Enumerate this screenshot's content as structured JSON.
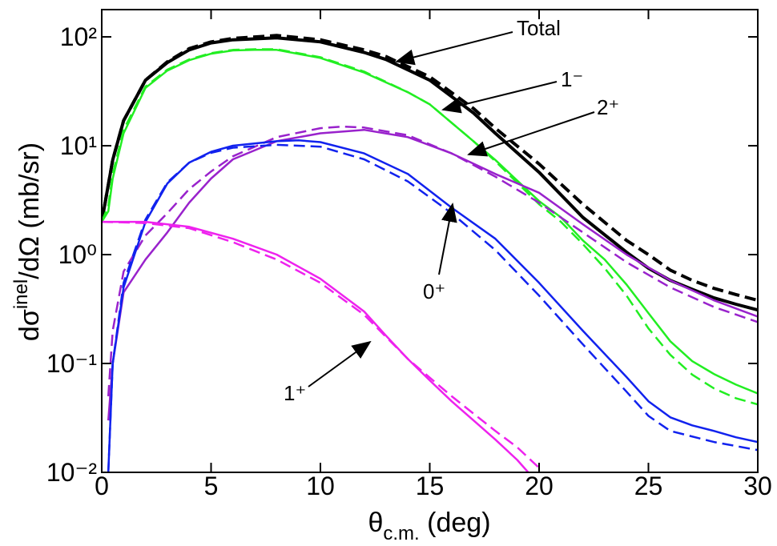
{
  "chart_data": {
    "type": "line",
    "xlabel": {
      "main": "θ",
      "sub": "c.m.",
      "rest": " (deg)"
    },
    "ylabel": {
      "pre": "dσ",
      "sup": "inel",
      "post": "/dΩ (mb/sr)"
    },
    "xlim": [
      0,
      30
    ],
    "xticks": [
      0,
      5,
      10,
      15,
      20,
      25,
      30
    ],
    "ylim": [
      0.01,
      178
    ],
    "log_y": true,
    "yticks": [
      {
        "value": 0.01,
        "label": "10⁻²"
      },
      {
        "value": 0.1,
        "label": "10⁻¹"
      },
      {
        "value": 1,
        "label": "10⁰"
      },
      {
        "value": 10,
        "label": "10¹"
      },
      {
        "value": 100,
        "label": "10²"
      }
    ],
    "series": [
      {
        "color": "#000000",
        "dashed": false,
        "width": 4,
        "x": [
          0,
          0.5,
          1,
          2,
          3,
          4,
          5,
          6,
          8,
          10,
          12,
          13,
          15,
          17,
          18,
          20,
          22,
          24,
          25,
          26,
          27,
          28,
          29,
          30
        ],
        "values": [
          2,
          7.4,
          17,
          40,
          58,
          76,
          88,
          94,
          98,
          90,
          72,
          62,
          40,
          20,
          13,
          5.7,
          2.2,
          1.05,
          0.75,
          0.58,
          0.48,
          0.4,
          0.35,
          0.31
        ]
      },
      {
        "color": "#000000",
        "dashed": true,
        "width": 4,
        "x": [
          0,
          0.5,
          1,
          2,
          3,
          4,
          5,
          6,
          8,
          10,
          12,
          13,
          15,
          17,
          18,
          20,
          22,
          24,
          25,
          26,
          27,
          28,
          29,
          30
        ],
        "values": [
          2,
          7.4,
          17,
          40,
          59,
          78,
          90,
          97,
          103,
          94,
          76,
          66,
          43,
          22,
          14.5,
          6.8,
          2.9,
          1.35,
          1.0,
          0.72,
          0.58,
          0.49,
          0.43,
          0.38
        ]
      },
      {
        "color": "#22ee22",
        "dashed": false,
        "width": 2.5,
        "x": [
          0,
          0.3,
          0.5,
          1,
          2,
          3,
          4,
          5,
          6,
          7,
          8,
          10,
          12,
          14,
          15,
          17,
          18,
          20,
          21,
          22,
          23,
          24,
          25,
          26,
          27,
          28,
          29,
          30
        ],
        "values": [
          2,
          2.5,
          5,
          13,
          34,
          49,
          61,
          70,
          75,
          76,
          76,
          64,
          47,
          31,
          24,
          11,
          7.4,
          3.1,
          2.2,
          1.35,
          0.9,
          0.53,
          0.29,
          0.16,
          0.105,
          0.08,
          0.064,
          0.053
        ]
      },
      {
        "color": "#22ee22",
        "dashed": true,
        "width": 2.5,
        "x": [
          0,
          0.3,
          0.5,
          1,
          2,
          3,
          4,
          5,
          6,
          7,
          8,
          10,
          12,
          14,
          15,
          17,
          18,
          20,
          21,
          22,
          23,
          24,
          25,
          26,
          27,
          28,
          29,
          30
        ],
        "values": [
          2,
          2.8,
          5.5,
          14,
          35,
          50,
          62,
          71,
          76,
          77,
          77,
          65,
          48,
          31,
          24,
          11,
          7.2,
          2.9,
          2.0,
          1.25,
          0.75,
          0.42,
          0.21,
          0.12,
          0.079,
          0.059,
          0.048,
          0.042
        ]
      },
      {
        "color": "#9922cc",
        "dashed": false,
        "width": 2.5,
        "x": [
          0.3,
          0.5,
          1,
          2,
          3,
          4,
          5,
          6,
          8,
          10,
          12,
          14,
          16,
          18,
          20,
          22,
          24,
          26,
          28,
          30
        ],
        "values": [
          0.03,
          0.1,
          0.45,
          0.9,
          1.6,
          3,
          5,
          7.5,
          11,
          13,
          14,
          12,
          8.5,
          5.5,
          3.7,
          1.9,
          1.0,
          0.58,
          0.38,
          0.27
        ]
      },
      {
        "color": "#9922cc",
        "dashed": true,
        "width": 2.5,
        "x": [
          0.3,
          0.5,
          1,
          2,
          3,
          4,
          5,
          6,
          8,
          10,
          11,
          12,
          14,
          16,
          18,
          20,
          22,
          24,
          26,
          28,
          30
        ],
        "values": [
          0.05,
          0.2,
          0.7,
          1.5,
          2.4,
          4,
          5.8,
          8,
          12,
          14.5,
          15,
          14.7,
          12.5,
          8.5,
          5.2,
          3.0,
          1.6,
          0.85,
          0.5,
          0.33,
          0.24
        ]
      },
      {
        "color": "#1122ee",
        "dashed": false,
        "width": 2.5,
        "x": [
          0.3,
          0.5,
          1,
          2,
          3,
          4,
          5,
          6,
          8,
          9,
          10,
          12,
          14,
          16,
          18,
          20,
          22,
          24,
          25,
          26,
          27,
          28,
          29,
          30
        ],
        "values": [
          0.01,
          0.1,
          0.5,
          2,
          4.5,
          7,
          8.8,
          10,
          11,
          11.2,
          10.8,
          8.5,
          5.5,
          2.7,
          1.4,
          0.55,
          0.2,
          0.075,
          0.045,
          0.032,
          0.027,
          0.024,
          0.021,
          0.019
        ]
      },
      {
        "color": "#1122ee",
        "dashed": true,
        "width": 2.5,
        "x": [
          0.3,
          0.5,
          1,
          2,
          3,
          4,
          5,
          6,
          8,
          10,
          12,
          14,
          16,
          18,
          20,
          22,
          24,
          25,
          26,
          28,
          30
        ],
        "values": [
          0.01,
          0.1,
          0.55,
          2.1,
          4.6,
          7,
          8.6,
          9.6,
          10.2,
          9.8,
          7.5,
          4.7,
          2.4,
          1.1,
          0.42,
          0.15,
          0.055,
          0.033,
          0.024,
          0.019,
          0.016
        ]
      },
      {
        "color": "#ee22ee",
        "dashed": false,
        "width": 2.5,
        "x": [
          0,
          2,
          4,
          6,
          8,
          10,
          12,
          13,
          14,
          15,
          16,
          17,
          18,
          19,
          19.5
        ],
        "values": [
          2,
          2,
          1.8,
          1.4,
          1.0,
          0.6,
          0.3,
          0.18,
          0.11,
          0.07,
          0.045,
          0.03,
          0.02,
          0.013,
          0.01
        ]
      },
      {
        "color": "#ee22ee",
        "dashed": true,
        "width": 2.5,
        "x": [
          0,
          2,
          4,
          6,
          8,
          10,
          12,
          14,
          16,
          18,
          19,
          20
        ],
        "values": [
          2,
          1.95,
          1.75,
          1.3,
          0.9,
          0.55,
          0.28,
          0.11,
          0.05,
          0.024,
          0.017,
          0.011
        ]
      }
    ],
    "annotations": [
      "Total",
      "1⁻",
      "2⁺",
      "0⁺",
      "1⁺"
    ]
  }
}
